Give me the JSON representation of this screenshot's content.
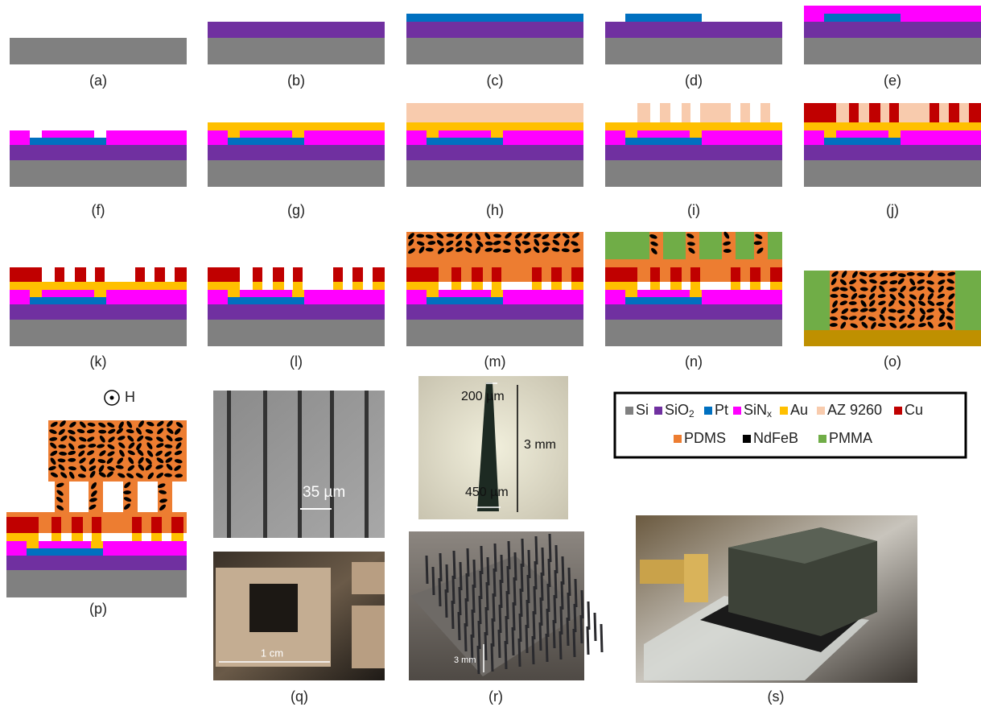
{
  "panels": [
    "(a)",
    "(b)",
    "(c)",
    "(d)",
    "(e)",
    "(f)",
    "(g)",
    "(h)",
    "(i)",
    "(j)",
    "(k)",
    "(l)",
    "(m)",
    "(n)",
    "(o)",
    "(p)",
    "(q)",
    "(r)",
    "(s)"
  ],
  "legend": [
    {
      "label": "Si",
      "color": "#808080"
    },
    {
      "label": "SiO",
      "sub": "2",
      "color": "#7030a0"
    },
    {
      "label": "Pt",
      "color": "#0070c0"
    },
    {
      "label": "SiN",
      "sub": "x",
      "color": "#ff00ff"
    },
    {
      "label": "Au",
      "color": "#ffc000"
    },
    {
      "label": "AZ 9260",
      "color": "#f8cbad"
    },
    {
      "label": "Cu",
      "color": "#c00000"
    },
    {
      "label": "PDMS",
      "color": "#ed7d31"
    },
    {
      "label": "NdFeB",
      "color": "#000000"
    },
    {
      "label": "PMMA",
      "color": "#70ad47"
    }
  ],
  "annotations": {
    "field": "H",
    "spacing": "35 µm",
    "tip_width": "200 µm",
    "needle_length": "3 mm",
    "base_width": "450 µm",
    "frame_width": "1 cm",
    "array_height": "3 mm"
  }
}
